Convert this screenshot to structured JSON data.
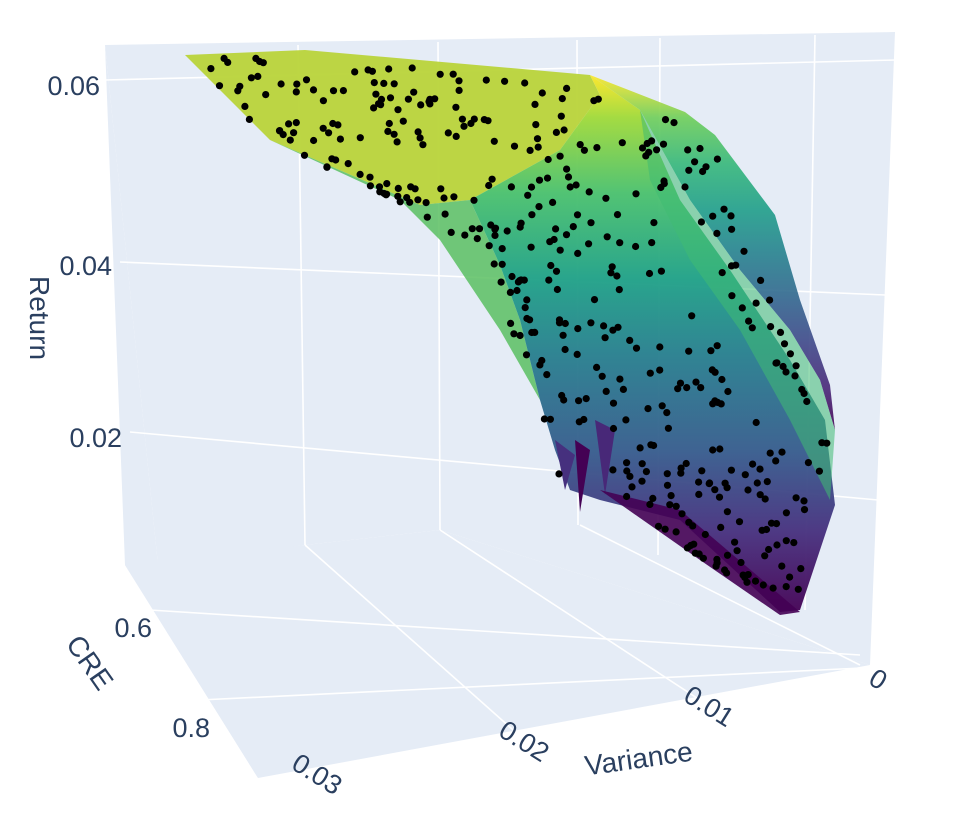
{
  "chart_data": {
    "type": "scatter3d-surface",
    "axes": {
      "x": {
        "label": "Variance",
        "ticks": [
          0.03,
          0.02,
          0.01,
          0
        ],
        "tick_labels": [
          "0.03",
          "0.02",
          "0.01",
          "0"
        ],
        "range": [
          0,
          0.032
        ]
      },
      "y": {
        "label": "CRE",
        "ticks": [
          0.6,
          0.8
        ],
        "tick_labels": [
          "0.6",
          "0.8"
        ],
        "range": [
          0.45,
          0.95
        ]
      },
      "z": {
        "label": "Return",
        "ticks": [
          0.02,
          0.04,
          0.06
        ],
        "tick_labels": [
          "0.02",
          "0.04",
          "0.06"
        ],
        "range": [
          0.005,
          0.065
        ]
      }
    },
    "surface": {
      "colorscale": "Viridis",
      "z_min": 0.005,
      "z_max": 0.065
    },
    "scatter": {
      "marker_color": "#000000",
      "point_count": 420
    },
    "colors": {
      "scene_background": "#e5ecf6",
      "grid": "#ffffff",
      "text": "#2a3f5f"
    }
  }
}
